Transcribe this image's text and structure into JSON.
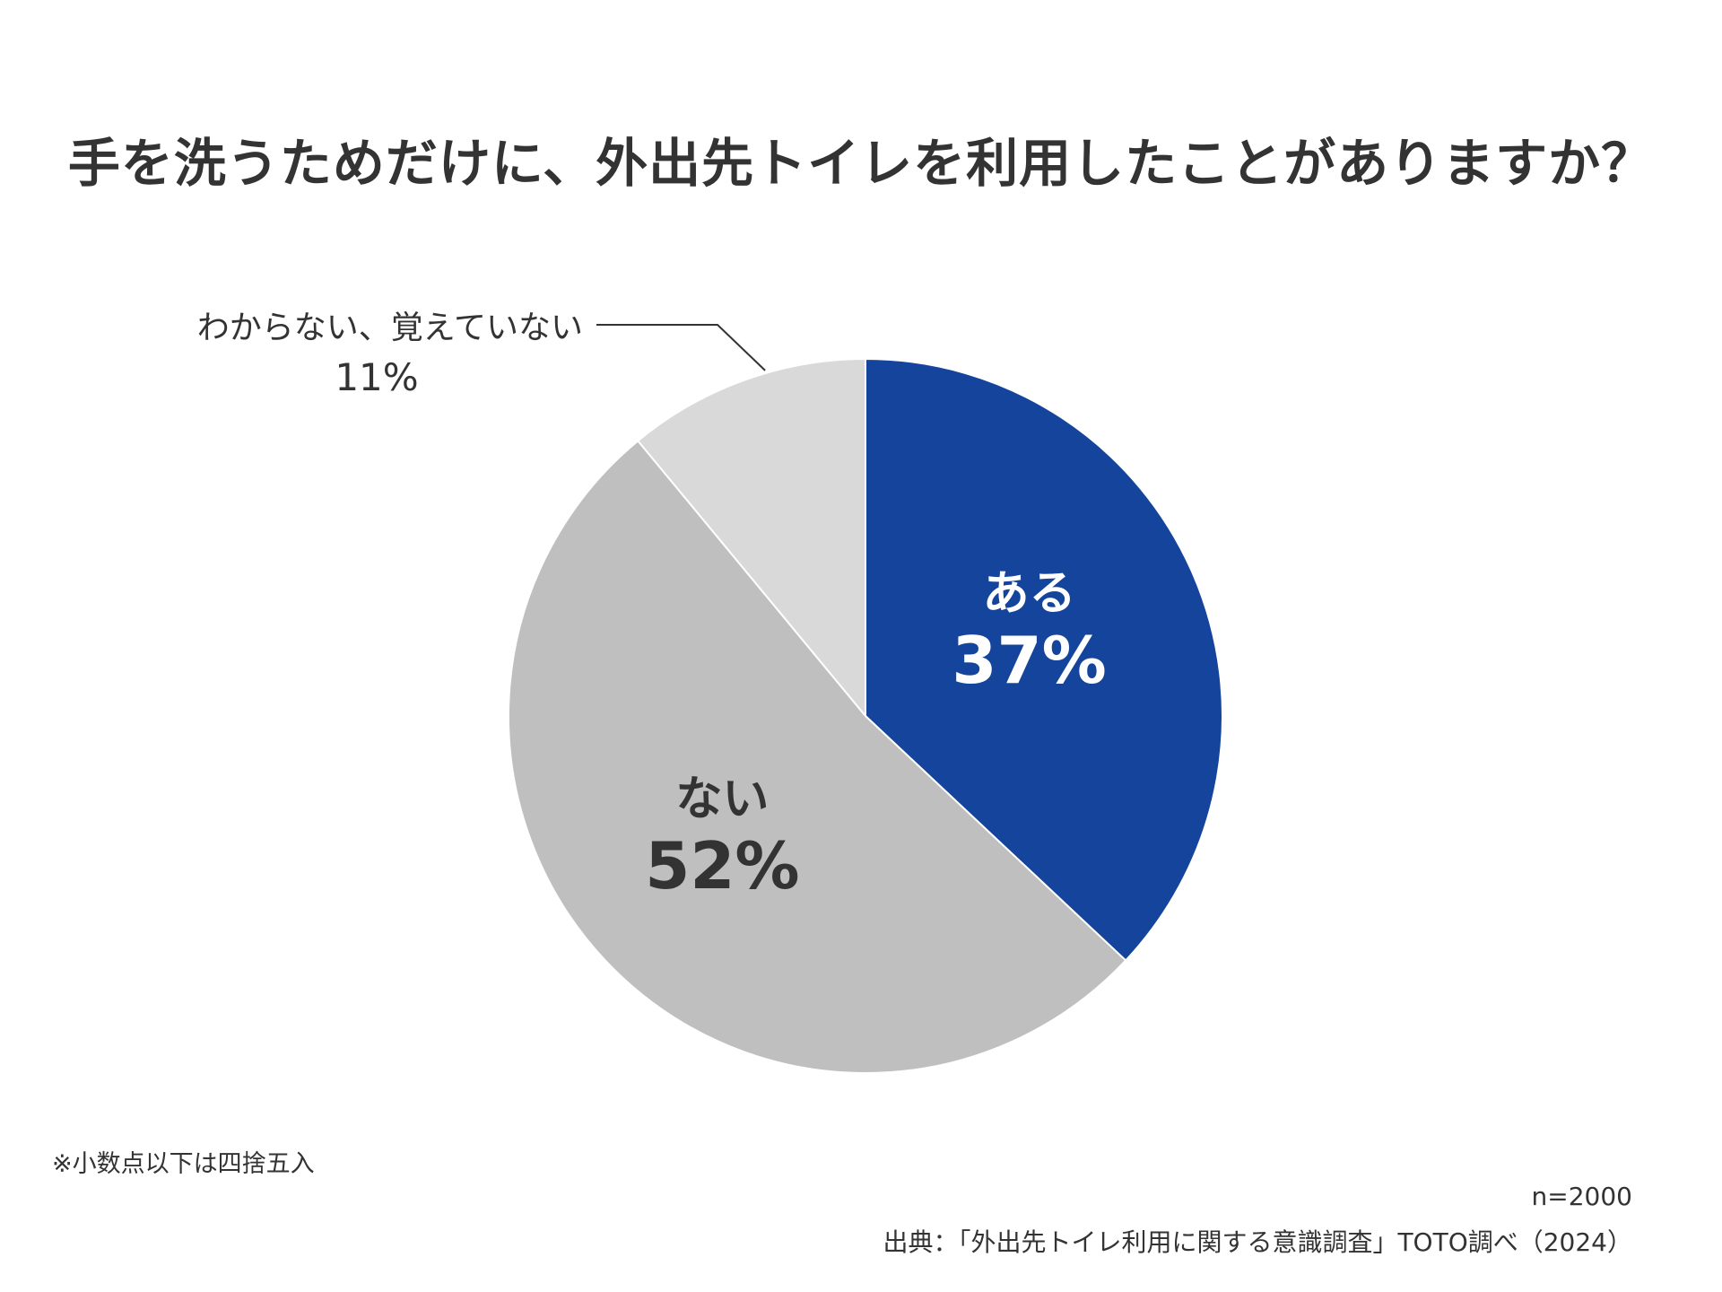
{
  "title": "手を洗うためだけに、外出先トイレを利用したことがありますか？",
  "footnote": "※小数点以下は四捨五入",
  "sample_size": "n=2000",
  "source": "出典：「外出先トイレ利用に関する意識調査」TOTO調べ（2024）",
  "chart_data": {
    "type": "pie",
    "title": "手を洗うためだけに、外出先トイレを利用したことがありますか？",
    "start": "12 o'clock, clockwise",
    "slices": [
      {
        "label": "ある",
        "value": 37,
        "value_label": "37%",
        "color": "#14449B",
        "text_color": "#ffffff"
      },
      {
        "label": "ない",
        "value": 52,
        "value_label": "52%",
        "color": "#BFBFBF",
        "text_color": "#333333"
      },
      {
        "label": "わからない、覚えていない",
        "value": 11,
        "value_label": "11%",
        "color": "#D9D9D9",
        "text_color": "#333333"
      }
    ]
  }
}
